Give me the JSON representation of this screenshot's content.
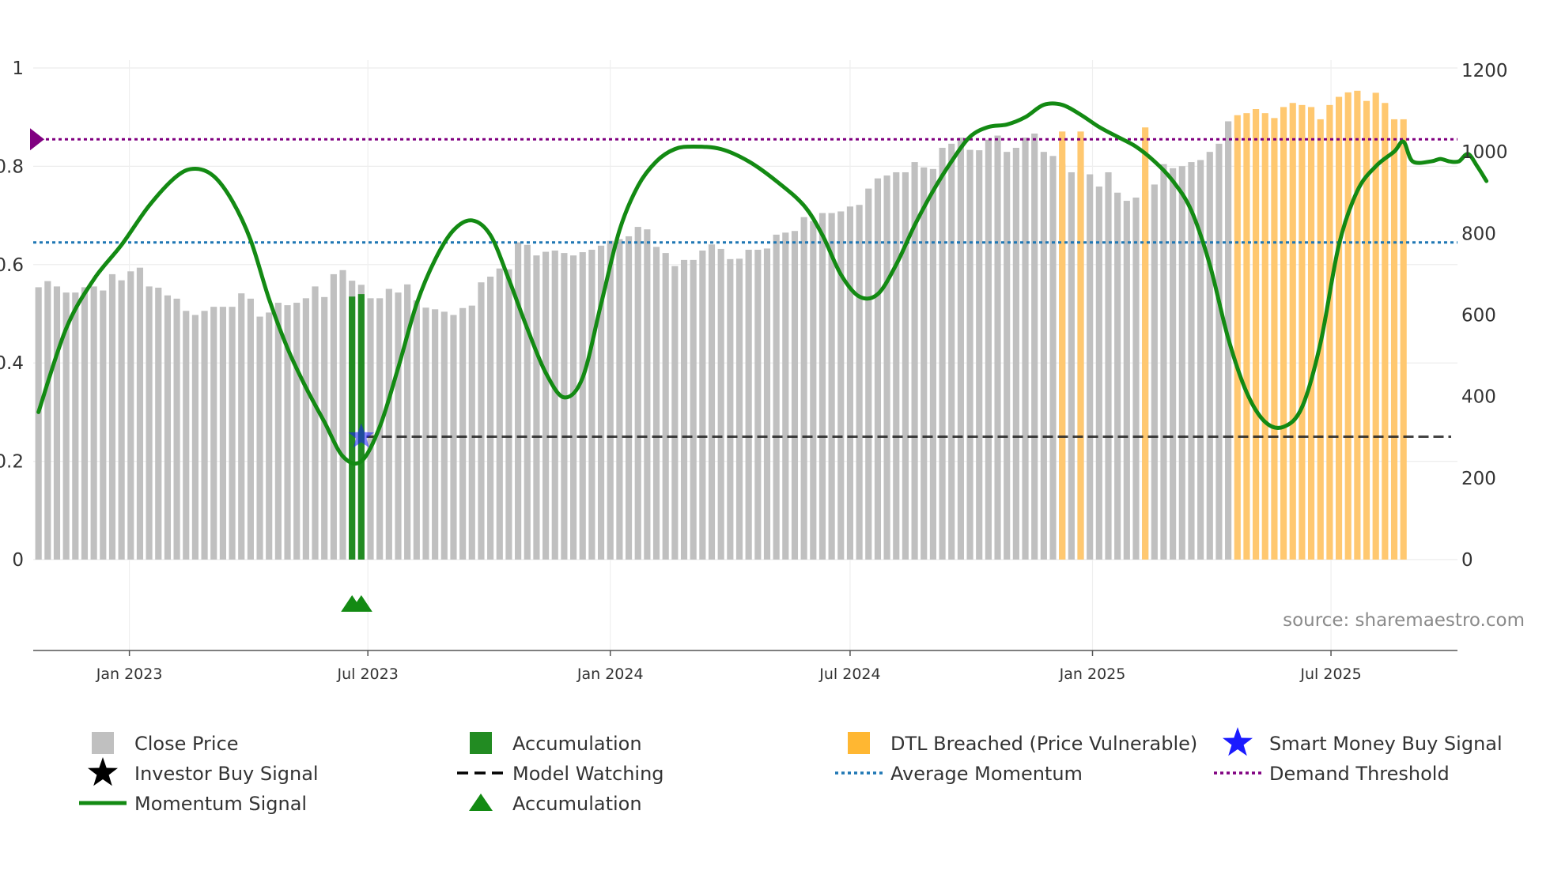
{
  "chart_data": {
    "type": "bar",
    "source": "source: sharemaestro.com",
    "x_axis": {
      "start": "2022-10-20",
      "end": "2025-10-05",
      "ticks": [
        {
          "date": "2023-01-01",
          "label": "Jan 2023"
        },
        {
          "date": "2023-07-01",
          "label": "Jul 2023"
        },
        {
          "date": "2024-01-01",
          "label": "Jan 2024"
        },
        {
          "date": "2024-07-01",
          "label": "Jul 2024"
        },
        {
          "date": "2025-01-01",
          "label": "Jan 2025"
        },
        {
          "date": "2025-07-01",
          "label": "Jul 2025"
        }
      ]
    },
    "y_left": {
      "range": [
        0,
        1
      ],
      "ticks": [
        {
          "value": 0,
          "label": "0"
        },
        {
          "value": 0.2,
          "label": "0.2"
        },
        {
          "value": 0.4,
          "label": "0.4"
        },
        {
          "value": 0.6,
          "label": "0.6"
        },
        {
          "value": 0.8,
          "label": "0.8"
        },
        {
          "value": 1,
          "label": "1"
        }
      ]
    },
    "y_right": {
      "range": [
        0,
        1200
      ],
      "ticks": [
        {
          "value": 0,
          "label": "0"
        },
        {
          "value": 200,
          "label": "200"
        },
        {
          "value": 400,
          "label": "400"
        },
        {
          "value": 600,
          "label": "600"
        },
        {
          "value": 800,
          "label": "800"
        },
        {
          "value": 1000,
          "label": "1000"
        },
        {
          "value": 1200,
          "label": "1200"
        }
      ]
    },
    "close_price": {
      "start_date": "2022-10-24",
      "interval_days": 7,
      "values": [
        668,
        683,
        670,
        655,
        655,
        668,
        670,
        660,
        700,
        685,
        707,
        716,
        670,
        667,
        648,
        640,
        610,
        600,
        610,
        620,
        620,
        620,
        653,
        640,
        596,
        606,
        630,
        624,
        630,
        641,
        670,
        644,
        700,
        710,
        684,
        674,
        641,
        641,
        664,
        655,
        675,
        636,
        618,
        614,
        608,
        600,
        617,
        623,
        680,
        694,
        714,
        712,
        778,
        772,
        746,
        755,
        758,
        752,
        746,
        754,
        760,
        770,
        782,
        786,
        793,
        816,
        810,
        767,
        752,
        720,
        735,
        735,
        758,
        773,
        762,
        737,
        738,
        760,
        760,
        763,
        797,
        802,
        806,
        840,
        830,
        850,
        850,
        854,
        866,
        870,
        910,
        935,
        942,
        950,
        950,
        975,
        962,
        958,
        1010,
        1020,
        1035,
        1005,
        1004,
        1030,
        1040,
        1000,
        1010,
        1035,
        1045,
        1000,
        990,
        970,
        950,
        950,
        945,
        915,
        950,
        900,
        880,
        888,
        905,
        920,
        970,
        960,
        965,
        975,
        980,
        1000,
        1020,
        1075,
        1090,
        1095,
        1105,
        1095,
        1083,
        1110,
        1120,
        1115,
        1110,
        1080,
        1115,
        1135,
        1146,
        1150,
        1125,
        1145,
        1120,
        1080,
        1080
      ],
      "color": "#c0c0c0"
    },
    "accumulation_bars": {
      "color": "#228b22",
      "points": [
        {
          "date": "2023-06-19",
          "value": 0.535
        },
        {
          "date": "2023-06-26",
          "value": 0.54
        }
      ]
    },
    "dtl_breached": {
      "color": "#ffc870",
      "start_index": 130
    },
    "dtl_breached_spikes": [
      {
        "date": "2024-12-09",
        "value": 1050
      },
      {
        "date": "2024-12-23",
        "value": 1050
      },
      {
        "date": "2025-02-10",
        "value": 1060
      }
    ],
    "momentum": {
      "color": "#138a13",
      "points": [
        [
          "2022-10-24",
          0.3
        ],
        [
          "2022-11-14",
          0.47
        ],
        [
          "2022-12-05",
          0.57
        ],
        [
          "2022-12-26",
          0.64
        ],
        [
          "2023-01-16",
          0.72
        ],
        [
          "2023-02-06",
          0.78
        ],
        [
          "2023-02-20",
          0.795
        ],
        [
          "2023-03-06",
          0.78
        ],
        [
          "2023-03-20",
          0.73
        ],
        [
          "2023-04-03",
          0.65
        ],
        [
          "2023-04-17",
          0.53
        ],
        [
          "2023-05-01",
          0.43
        ],
        [
          "2023-05-15",
          0.35
        ],
        [
          "2023-05-29",
          0.28
        ],
        [
          "2023-06-12",
          0.21
        ],
        [
          "2023-06-26",
          0.2
        ],
        [
          "2023-07-10",
          0.27
        ],
        [
          "2023-07-24",
          0.39
        ],
        [
          "2023-08-07",
          0.52
        ],
        [
          "2023-08-21",
          0.61
        ],
        [
          "2023-09-04",
          0.67
        ],
        [
          "2023-09-18",
          0.69
        ],
        [
          "2023-10-02",
          0.66
        ],
        [
          "2023-10-16",
          0.57
        ],
        [
          "2023-10-30",
          0.47
        ],
        [
          "2023-11-13",
          0.38
        ],
        [
          "2023-11-27",
          0.33
        ],
        [
          "2023-12-11",
          0.37
        ],
        [
          "2023-12-25",
          0.52
        ],
        [
          "2024-01-08",
          0.67
        ],
        [
          "2024-01-22",
          0.76
        ],
        [
          "2024-02-05",
          0.81
        ],
        [
          "2024-02-19",
          0.835
        ],
        [
          "2024-03-04",
          0.84
        ],
        [
          "2024-03-25",
          0.835
        ],
        [
          "2024-04-15",
          0.81
        ],
        [
          "2024-05-06",
          0.77
        ],
        [
          "2024-05-27",
          0.72
        ],
        [
          "2024-06-10",
          0.66
        ],
        [
          "2024-06-24",
          0.58
        ],
        [
          "2024-07-08",
          0.535
        ],
        [
          "2024-07-22",
          0.54
        ],
        [
          "2024-08-05",
          0.6
        ],
        [
          "2024-08-19",
          0.68
        ],
        [
          "2024-09-02",
          0.75
        ],
        [
          "2024-09-16",
          0.81
        ],
        [
          "2024-09-30",
          0.86
        ],
        [
          "2024-10-14",
          0.88
        ],
        [
          "2024-10-28",
          0.885
        ],
        [
          "2024-11-11",
          0.9
        ],
        [
          "2024-11-25",
          0.925
        ],
        [
          "2024-12-09",
          0.925
        ],
        [
          "2024-12-23",
          0.905
        ],
        [
          "2025-01-06",
          0.88
        ],
        [
          "2025-01-20",
          0.86
        ],
        [
          "2025-02-03",
          0.84
        ],
        [
          "2025-02-17",
          0.81
        ],
        [
          "2025-03-03",
          0.77
        ],
        [
          "2025-03-17",
          0.71
        ],
        [
          "2025-03-31",
          0.6
        ],
        [
          "2025-04-14",
          0.45
        ],
        [
          "2025-04-28",
          0.34
        ],
        [
          "2025-05-12",
          0.28
        ],
        [
          "2025-05-26",
          0.27
        ],
        [
          "2025-06-09",
          0.31
        ],
        [
          "2025-06-23",
          0.44
        ],
        [
          "2025-07-07",
          0.64
        ],
        [
          "2025-07-21",
          0.75
        ],
        [
          "2025-08-04",
          0.8
        ],
        [
          "2025-08-18",
          0.83
        ],
        [
          "2025-08-25",
          0.85
        ],
        [
          "2025-09-01",
          0.81
        ],
        [
          "2025-09-15",
          0.81
        ],
        [
          "2025-09-22",
          0.815
        ],
        [
          "2025-09-29",
          0.81
        ],
        [
          "2025-10-06",
          0.81
        ],
        [
          "2025-10-13",
          0.825
        ],
        [
          "2025-10-20",
          0.8
        ],
        [
          "2025-10-27",
          0.77
        ]
      ]
    },
    "average_momentum": {
      "value": 0.645,
      "color": "#1f77b4"
    },
    "demand_threshold": {
      "value": 0.855,
      "color": "#800080"
    },
    "model_watching": {
      "start_date": "2023-06-30",
      "value": 0.25,
      "color": "#222222"
    },
    "smart_money_buy_signal": {
      "date": "2023-06-26",
      "value": 0.25,
      "color": "#1a1aff"
    },
    "accumulation_markers": [
      {
        "date": "2023-06-19",
        "value": -0.09
      },
      {
        "date": "2023-06-26",
        "value": -0.09
      }
    ],
    "legend": [
      {
        "id": "close-price",
        "label": "Close Price",
        "symbol": "square",
        "color": "#c0c0c0"
      },
      {
        "id": "accumulation-bar",
        "label": "Accumulation",
        "symbol": "square",
        "color": "#228b22"
      },
      {
        "id": "dtl-breached",
        "label": "DTL Breached (Price Vulnerable)",
        "symbol": "square",
        "color": "#ffb732"
      },
      {
        "id": "smart-money-buy",
        "label": "Smart Money Buy Signal",
        "symbol": "star",
        "color": "#1a1aff"
      },
      {
        "id": "investor-buy",
        "label": "Investor Buy Signal",
        "symbol": "star",
        "color": "#000000"
      },
      {
        "id": "model-watching",
        "label": "Model Watching",
        "symbol": "dash",
        "color": "#000000"
      },
      {
        "id": "average-momentum",
        "label": "Average Momentum",
        "symbol": "dot",
        "color": "#1f77b4"
      },
      {
        "id": "demand-threshold",
        "label": "Demand Threshold",
        "symbol": "dot",
        "color": "#800080"
      },
      {
        "id": "momentum-signal",
        "label": "Momentum Signal",
        "symbol": "line",
        "color": "#138a13"
      },
      {
        "id": "accumulation-marker",
        "label": "Accumulation",
        "symbol": "triangle",
        "color": "#138a13"
      }
    ]
  }
}
